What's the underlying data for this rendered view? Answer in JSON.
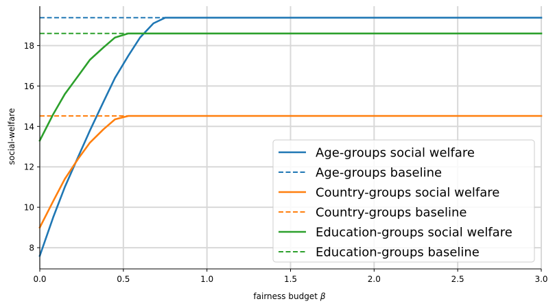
{
  "chart_data": {
    "type": "line",
    "title": "",
    "xlabel": "fairness budget",
    "xlabel_symbol": "β",
    "ylabel": "social-welfare",
    "xlim": [
      0,
      3.0
    ],
    "ylim": [
      6.95,
      19.95
    ],
    "grid": true,
    "legend_position": "lower-right",
    "x_ticks": [
      {
        "value": 0.0,
        "label": "0.0"
      },
      {
        "value": 0.5,
        "label": "0.5"
      },
      {
        "value": 1.0,
        "label": "1.0"
      },
      {
        "value": 1.5,
        "label": "1.5"
      },
      {
        "value": 2.0,
        "label": "2.0"
      },
      {
        "value": 2.5,
        "label": "2.5"
      },
      {
        "value": 3.0,
        "label": "3.0"
      }
    ],
    "y_ticks": [
      {
        "value": 8,
        "label": "8"
      },
      {
        "value": 10,
        "label": "10"
      },
      {
        "value": 12,
        "label": "12"
      },
      {
        "value": 14,
        "label": "14"
      },
      {
        "value": 16,
        "label": "16"
      },
      {
        "value": 18,
        "label": "18"
      }
    ],
    "series": [
      {
        "name": "Age-groups social welfare",
        "color": "#1f77b4",
        "style": "solid",
        "x": [
          0,
          0.08,
          0.15,
          0.23,
          0.3,
          0.38,
          0.45,
          0.53,
          0.6,
          0.68,
          0.75,
          3.0
        ],
        "y": [
          7.6,
          9.5,
          11.0,
          12.5,
          13.8,
          15.2,
          16.4,
          17.5,
          18.4,
          19.1,
          19.38,
          19.38
        ]
      },
      {
        "name": "Age-groups baseline",
        "color": "#1f77b4",
        "style": "dashed",
        "x": [
          0,
          0.75
        ],
        "y": [
          19.38,
          19.38
        ]
      },
      {
        "name": "Country-groups social welfare",
        "color": "#ff7f0e",
        "style": "solid",
        "x": [
          0,
          0.08,
          0.15,
          0.23,
          0.3,
          0.38,
          0.45,
          0.53,
          3.0
        ],
        "y": [
          9.0,
          10.3,
          11.4,
          12.4,
          13.2,
          13.85,
          14.35,
          14.52,
          14.52
        ]
      },
      {
        "name": "Country-groups baseline",
        "color": "#ff7f0e",
        "style": "dashed",
        "x": [
          0,
          0.53
        ],
        "y": [
          14.52,
          14.52
        ]
      },
      {
        "name": "Education-groups social welfare",
        "color": "#2ca02c",
        "style": "solid",
        "x": [
          0,
          0.08,
          0.15,
          0.23,
          0.3,
          0.38,
          0.45,
          0.53,
          3.0
        ],
        "y": [
          13.3,
          14.6,
          15.6,
          16.5,
          17.3,
          17.9,
          18.4,
          18.6,
          18.6
        ]
      },
      {
        "name": "Education-groups baseline",
        "color": "#2ca02c",
        "style": "dashed",
        "x": [
          0,
          0.53
        ],
        "y": [
          18.6,
          18.6
        ]
      }
    ]
  }
}
